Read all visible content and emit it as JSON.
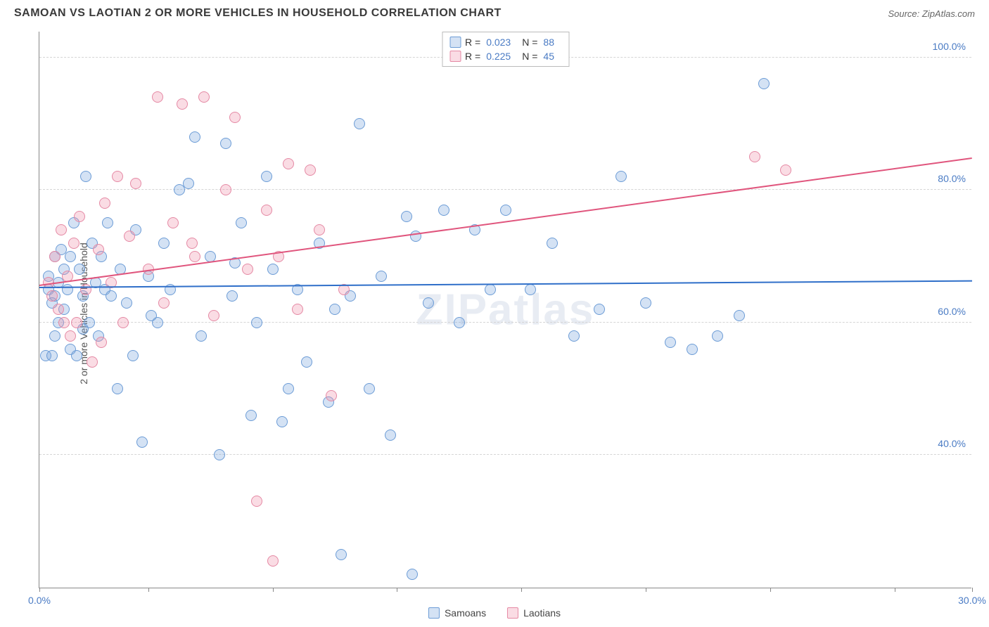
{
  "header": {
    "title": "SAMOAN VS LAOTIAN 2 OR MORE VEHICLES IN HOUSEHOLD CORRELATION CHART",
    "source_prefix": "Source: ",
    "source_name": "ZipAtlas.com"
  },
  "chart": {
    "type": "scatter",
    "ylabel": "2 or more Vehicles in Household",
    "watermark": "ZIPatlas",
    "xlim": [
      0,
      30
    ],
    "ylim": [
      20,
      104
    ],
    "xticks": [
      0,
      3.5,
      7.5,
      11.5,
      15.5,
      19.5,
      23.5,
      27.5,
      30
    ],
    "xtick_labels": {
      "0": "0.0%",
      "30": "30.0%"
    },
    "yticks": [
      40,
      60,
      80,
      100
    ],
    "ytick_labels": [
      "40.0%",
      "60.0%",
      "80.0%",
      "100.0%"
    ],
    "grid_color": "#d5d5d5",
    "axis_color": "#888888",
    "background_color": "#ffffff",
    "label_color": "#4a7bc4",
    "marker_radius": 8,
    "marker_stroke_width": 1.5,
    "series": [
      {
        "name": "Samoans",
        "fill": "rgba(120,165,220,0.32)",
        "stroke": "#6c9cd6",
        "R": "0.023",
        "N": "88",
        "trend": {
          "y_at_x0": 65.5,
          "y_at_x30": 66.5,
          "color": "#2f6fc9"
        },
        "points": [
          [
            0.2,
            55
          ],
          [
            0.3,
            65
          ],
          [
            0.3,
            67
          ],
          [
            0.4,
            63
          ],
          [
            0.4,
            55
          ],
          [
            0.5,
            70
          ],
          [
            0.5,
            64
          ],
          [
            0.6,
            66
          ],
          [
            0.6,
            60
          ],
          [
            0.7,
            71
          ],
          [
            0.8,
            68
          ],
          [
            0.8,
            62
          ],
          [
            0.9,
            65
          ],
          [
            1.0,
            56
          ],
          [
            1.0,
            70
          ],
          [
            1.1,
            75
          ],
          [
            1.2,
            55
          ],
          [
            1.3,
            68
          ],
          [
            1.4,
            64
          ],
          [
            1.5,
            82
          ],
          [
            1.6,
            60
          ],
          [
            1.7,
            72
          ],
          [
            1.8,
            66
          ],
          [
            1.9,
            58
          ],
          [
            2.0,
            70
          ],
          [
            2.1,
            65
          ],
          [
            2.2,
            75
          ],
          [
            2.3,
            64
          ],
          [
            2.5,
            50
          ],
          [
            2.6,
            68
          ],
          [
            2.8,
            63
          ],
          [
            3.0,
            55
          ],
          [
            3.1,
            74
          ],
          [
            3.3,
            42
          ],
          [
            3.5,
            67
          ],
          [
            3.8,
            60
          ],
          [
            4.0,
            72
          ],
          [
            4.2,
            65
          ],
          [
            4.5,
            80
          ],
          [
            4.8,
            81
          ],
          [
            5.0,
            88
          ],
          [
            5.2,
            58
          ],
          [
            5.5,
            70
          ],
          [
            5.8,
            40
          ],
          [
            6.0,
            87
          ],
          [
            6.2,
            64
          ],
          [
            6.5,
            75
          ],
          [
            6.8,
            46
          ],
          [
            7.0,
            60
          ],
          [
            7.3,
            82
          ],
          [
            7.5,
            68
          ],
          [
            7.8,
            45
          ],
          [
            8.0,
            50
          ],
          [
            8.3,
            65
          ],
          [
            8.6,
            54
          ],
          [
            9.0,
            72
          ],
          [
            9.3,
            48
          ],
          [
            9.7,
            25
          ],
          [
            10.0,
            64
          ],
          [
            10.3,
            90
          ],
          [
            10.6,
            50
          ],
          [
            11.0,
            67
          ],
          [
            11.3,
            43
          ],
          [
            11.8,
            76
          ],
          [
            12.1,
            73
          ],
          [
            12.5,
            63
          ],
          [
            13.0,
            77
          ],
          [
            13.5,
            60
          ],
          [
            14.0,
            74
          ],
          [
            14.5,
            65
          ],
          [
            15.0,
            77
          ],
          [
            15.8,
            65
          ],
          [
            16.5,
            72
          ],
          [
            17.2,
            58
          ],
          [
            18.0,
            62
          ],
          [
            18.7,
            82
          ],
          [
            19.5,
            63
          ],
          [
            20.3,
            57
          ],
          [
            21.0,
            56
          ],
          [
            21.8,
            58
          ],
          [
            22.5,
            61
          ],
          [
            23.3,
            96
          ],
          [
            12.0,
            22
          ],
          [
            9.5,
            62
          ],
          [
            6.3,
            69
          ],
          [
            3.6,
            61
          ],
          [
            1.4,
            59
          ],
          [
            0.5,
            58
          ]
        ]
      },
      {
        "name": "Laotians",
        "fill": "rgba(240,145,170,0.32)",
        "stroke": "#e589a4",
        "R": "0.225",
        "N": "45",
        "trend": {
          "y_at_x0": 65.8,
          "y_at_x30": 85.0,
          "color": "#e0557d"
        },
        "points": [
          [
            0.4,
            64
          ],
          [
            0.5,
            70
          ],
          [
            0.6,
            62
          ],
          [
            0.7,
            74
          ],
          [
            0.8,
            60
          ],
          [
            0.9,
            67
          ],
          [
            1.0,
            58
          ],
          [
            1.1,
            72
          ],
          [
            1.3,
            76
          ],
          [
            1.5,
            65
          ],
          [
            1.7,
            54
          ],
          [
            1.9,
            71
          ],
          [
            2.1,
            78
          ],
          [
            2.3,
            66
          ],
          [
            2.5,
            82
          ],
          [
            2.7,
            60
          ],
          [
            2.9,
            73
          ],
          [
            3.1,
            81
          ],
          [
            3.5,
            68
          ],
          [
            3.8,
            94
          ],
          [
            4.0,
            63
          ],
          [
            4.3,
            75
          ],
          [
            4.6,
            93
          ],
          [
            5.0,
            70
          ],
          [
            5.3,
            94
          ],
          [
            5.6,
            61
          ],
          [
            6.0,
            80
          ],
          [
            6.3,
            91
          ],
          [
            6.7,
            68
          ],
          [
            7.0,
            33
          ],
          [
            7.3,
            77
          ],
          [
            7.7,
            70
          ],
          [
            8.0,
            84
          ],
          [
            8.3,
            62
          ],
          [
            8.7,
            83
          ],
          [
            9.0,
            74
          ],
          [
            9.4,
            49
          ],
          [
            9.8,
            65
          ],
          [
            7.5,
            24
          ],
          [
            23.0,
            85
          ],
          [
            24.0,
            83
          ],
          [
            2.0,
            57
          ],
          [
            1.2,
            60
          ],
          [
            0.3,
            66
          ],
          [
            4.9,
            72
          ]
        ]
      }
    ]
  },
  "legend_top": {
    "R_label": "R =",
    "N_label": "N ="
  },
  "legend_bottom": {
    "items": [
      "Samoans",
      "Laotians"
    ]
  }
}
